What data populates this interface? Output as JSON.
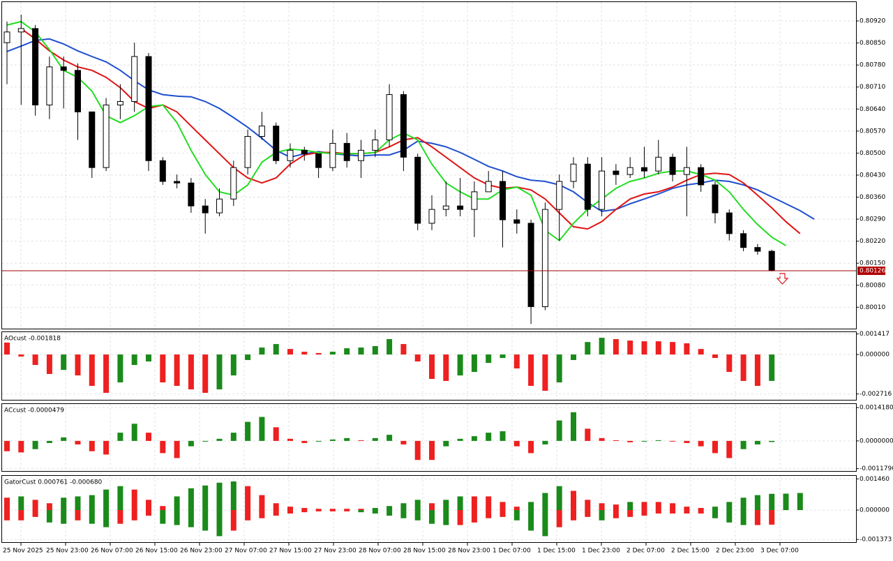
{
  "time_axis": [
    "25 Nov 2025",
    "25 Nov 23:00",
    "26 Nov 07:00",
    "26 Nov 15:00",
    "26 Nov 23:00",
    "27 Nov 07:00",
    "27 Nov 15:00",
    "27 Nov 23:00",
    "28 Nov 07:00",
    "28 Nov 15:00",
    "28 Nov 23:00",
    "1 Dec 07:00",
    "1 Dec 15:00",
    "1 Dec 23:00",
    "2 Dec 07:00",
    "2 Dec 15:00",
    "2 Dec 23:00",
    "3 Dec 07:00"
  ],
  "chart_data": [
    {
      "type": "candlestick",
      "candles": [
        [
          0.80851,
          0.80918,
          0.80719,
          0.80885
        ],
        [
          0.80885,
          0.8094,
          0.80653,
          0.80896
        ],
        [
          0.80896,
          0.80907,
          0.80619,
          0.80653
        ],
        [
          0.80653,
          0.80807,
          0.80608,
          0.80774
        ],
        [
          0.80774,
          0.80807,
          0.80642,
          0.80763
        ],
        [
          0.80763,
          0.80785,
          0.80542,
          0.80631
        ],
        [
          0.80631,
          0.80631,
          0.80421,
          0.80454
        ],
        [
          0.80454,
          0.80675,
          0.80443,
          0.80653
        ],
        [
          0.80653,
          0.80719,
          0.80608,
          0.80664
        ],
        [
          0.80664,
          0.80851,
          0.80631,
          0.80807
        ],
        [
          0.80807,
          0.80818,
          0.80443,
          0.80476
        ],
        [
          0.80476,
          0.80487,
          0.80399,
          0.8041
        ],
        [
          0.8041,
          0.80432,
          0.80388,
          0.80405
        ],
        [
          0.80405,
          0.80421,
          0.8031,
          0.80332
        ],
        [
          0.80332,
          0.80354,
          0.80244,
          0.8031
        ],
        [
          0.8031,
          0.80388,
          0.80299,
          0.80354
        ],
        [
          0.80354,
          0.80476,
          0.80332,
          0.80454
        ],
        [
          0.80454,
          0.80575,
          0.80432,
          0.80553
        ],
        [
          0.80553,
          0.80631,
          0.80542,
          0.80586
        ],
        [
          0.80586,
          0.80597,
          0.80465,
          0.80476
        ],
        [
          0.80476,
          0.80531,
          0.80454,
          0.80509
        ],
        [
          0.80509,
          0.8052,
          0.80476,
          0.80498
        ],
        [
          0.80498,
          0.80498,
          0.80421,
          0.80454
        ],
        [
          0.80454,
          0.80575,
          0.80443,
          0.80531
        ],
        [
          0.80531,
          0.80564,
          0.80454,
          0.80476
        ],
        [
          0.80476,
          0.80542,
          0.80421,
          0.80509
        ],
        [
          0.80509,
          0.80575,
          0.80487,
          0.80542
        ],
        [
          0.80542,
          0.80719,
          0.8052,
          0.80686
        ],
        [
          0.80686,
          0.80697,
          0.80443,
          0.80487
        ],
        [
          0.80487,
          0.80498,
          0.80255,
          0.80277
        ],
        [
          0.80277,
          0.80366,
          0.80255,
          0.80321
        ],
        [
          0.80321,
          0.8041,
          0.80299,
          0.80332
        ],
        [
          0.80332,
          0.80421,
          0.80299,
          0.80321
        ],
        [
          0.80321,
          0.8041,
          0.80233,
          0.80377
        ],
        [
          0.80377,
          0.80443,
          0.80377,
          0.8041
        ],
        [
          0.8041,
          0.80443,
          0.802,
          0.80288
        ],
        [
          0.80288,
          0.80321,
          0.80244,
          0.80277
        ],
        [
          0.80277,
          0.80288,
          0.79957,
          0.80012
        ],
        [
          0.80012,
          0.80343,
          0.80001,
          0.80321
        ],
        [
          0.80321,
          0.80432,
          0.80222,
          0.8041
        ],
        [
          0.8041,
          0.80487,
          0.80388,
          0.80465
        ],
        [
          0.80465,
          0.80487,
          0.80299,
          0.80321
        ],
        [
          0.80321,
          0.80487,
          0.80299,
          0.80443
        ],
        [
          0.80443,
          0.80465,
          0.80399,
          0.80432
        ],
        [
          0.80432,
          0.80487,
          0.80421,
          0.80454
        ],
        [
          0.80454,
          0.8052,
          0.80421,
          0.80443
        ],
        [
          0.80443,
          0.80542,
          0.80432,
          0.80487
        ],
        [
          0.80487,
          0.80498,
          0.8041,
          0.80432
        ],
        [
          0.80432,
          0.8052,
          0.80299,
          0.80454
        ],
        [
          0.80454,
          0.80465,
          0.80377,
          0.80399
        ],
        [
          0.80399,
          0.8041,
          0.80277,
          0.8031
        ],
        [
          0.8031,
          0.80321,
          0.80222,
          0.80244
        ],
        [
          0.80244,
          0.80255,
          0.80188,
          0.802
        ],
        [
          0.802,
          0.80211,
          0.80177,
          0.80188
        ],
        [
          0.80188,
          0.80193,
          0.80124,
          0.80126
        ]
      ],
      "series": [
        {
          "color": "#1f4fcf",
          "values": [
            0.80823,
            0.8084,
            0.80858,
            0.80863,
            0.80847,
            0.80825,
            0.80807,
            0.8079,
            0.80763,
            0.8073,
            0.80701,
            0.80686,
            0.80681,
            0.80679,
            0.80664,
            0.80642,
            0.80613,
            0.80582,
            0.80547,
            0.80509,
            0.80487,
            0.80498,
            0.80505,
            0.80498,
            0.80494,
            0.80491,
            0.80494,
            0.80494,
            0.80509,
            0.80538,
            0.80531,
            0.8052,
            0.80502,
            0.8048,
            0.80458,
            0.80443,
            0.80425,
            0.80414,
            0.8041,
            0.80399,
            0.80377,
            0.80343,
            0.80315,
            0.80321,
            0.80339,
            0.80354,
            0.8037,
            0.80388,
            0.80399,
            0.80405,
            0.80414,
            0.8041,
            0.80399,
            0.80383,
            0.80361,
            0.80339,
            0.80317,
            0.8029
          ]
        },
        {
          "color": "#e01414",
          "values": [
            null,
            0.80896,
            0.80863,
            0.80825,
            0.80796,
            0.80774,
            0.80763,
            0.80741,
            0.80708,
            0.80664,
            0.80642,
            0.80653,
            0.80631,
            0.80586,
            0.80542,
            0.80498,
            0.80454,
            0.80421,
            0.80405,
            0.80421,
            0.80465,
            0.80494,
            0.80502,
            0.80502,
            0.80498,
            0.80498,
            0.80502,
            0.8052,
            0.80542,
            0.80549,
            0.8052,
            0.80487,
            0.80454,
            0.80421,
            0.80399,
            0.80388,
            0.80392,
            0.80383,
            0.80354,
            0.8031,
            0.80266,
            0.80259,
            0.80282,
            0.80321,
            0.80354,
            0.8037,
            0.80377,
            0.80392,
            0.80414,
            0.80432,
            0.80436,
            0.80432,
            0.80405,
            0.80366,
            0.80326,
            0.80282,
            0.80244,
            null
          ]
        },
        {
          "color": "#22dd22",
          "values": [
            0.80907,
            0.80918,
            0.80885,
            0.80829,
            0.80763,
            0.80741,
            0.80697,
            0.80619,
            0.80597,
            0.80619,
            0.80648,
            0.80653,
            0.80597,
            0.80509,
            0.80432,
            0.80377,
            0.80366,
            0.80399,
            0.80471,
            0.80502,
            0.80513,
            0.80509,
            0.80502,
            0.80498,
            0.80498,
            0.80498,
            0.80502,
            0.80542,
            0.80564,
            0.80542,
            0.80465,
            0.80405,
            0.80377,
            0.80354,
            0.80354,
            0.80383,
            0.80392,
            0.80366,
            0.80255,
            0.80222,
            0.80277,
            0.80321,
            0.80354,
            0.80388,
            0.8041,
            0.80421,
            0.80436,
            0.80443,
            0.80443,
            0.80432,
            0.80414,
            0.80377,
            0.80321,
            0.80273,
            0.80233,
            0.80206,
            null,
            null
          ]
        }
      ],
      "current_price": 0.80126,
      "ylim": [
        0.79942,
        0.8098
      ],
      "yticks": [
        {
          "value": 0.8092,
          "label": "0.80920"
        },
        {
          "value": 0.8085,
          "label": "0.80850"
        },
        {
          "value": 0.8078,
          "label": "0.80780"
        },
        {
          "value": 0.8071,
          "label": "0.80710"
        },
        {
          "value": 0.8064,
          "label": "0.80640"
        },
        {
          "value": 0.8057,
          "label": "0.80570"
        },
        {
          "value": 0.805,
          "label": "0.80500"
        },
        {
          "value": 0.8043,
          "label": "0.80430"
        },
        {
          "value": 0.8036,
          "label": "0.80360"
        },
        {
          "value": 0.8029,
          "label": "0.80290"
        },
        {
          "value": 0.8022,
          "label": "0.80220"
        },
        {
          "value": 0.8015,
          "label": "0.80150"
        },
        {
          "value": 0.8008,
          "label": "0.80080"
        },
        {
          "value": 0.8001,
          "label": "0.80010"
        }
      ]
    },
    {
      "type": "bar",
      "label": "AOcust -0.001818",
      "colors": [
        "#1a8a1a",
        "#ee2020"
      ],
      "values": [
        0.00082,
        -0.00014,
        -0.00072,
        -0.00134,
        -0.00106,
        -0.00144,
        -0.00216,
        -0.00264,
        -0.00192,
        -0.00072,
        -0.00048,
        -0.00192,
        -0.00216,
        -0.0024,
        -0.00264,
        -0.0024,
        -0.00144,
        -0.00038,
        0.00048,
        0.00072,
        0.00038,
        0.00019,
        0.0001,
        0.00019,
        0.00043,
        0.00048,
        0.00058,
        0.00106,
        0.00072,
        -0.00048,
        -0.00168,
        -0.00182,
        -0.00144,
        -0.0012,
        -0.00058,
        -0.00024,
        -0.00096,
        -0.00216,
        -0.0025,
        -0.00192,
        -0.00038,
        0.00086,
        0.00115,
        0.00106,
        0.00096,
        0.00091,
        0.00091,
        0.00086,
        0.00077,
        0.00038,
        -0.00024,
        -0.0012,
        -0.00182,
        -0.00216,
        -0.001818
      ],
      "ylim": [
        -0.00312,
        0.00154
      ],
      "yticks": [
        0.001417,
        {
          "value": 0,
          "label": "0.000000"
        },
        -0.002716
      ]
    },
    {
      "type": "bar",
      "label": "ACcust -0.0000479",
      "colors": [
        "#1a8a1a",
        "#ee2020"
      ],
      "values": [
        -0.00044,
        -0.00049,
        -0.00035,
        -9e-05,
        0.00015,
        -0.00015,
        -0.00044,
        -0.00058,
        0.00035,
        0.00073,
        0.00035,
        -0.00052,
        -0.00073,
        -0.00023,
        -3e-05,
        9e-05,
        0.00035,
        0.00081,
        0.00102,
        0.00058,
        9e-05,
        -9e-05,
        -3e-05,
        6e-05,
        0.00012,
        3e-05,
        0.00012,
        0.00026,
        -0.00015,
        -0.00081,
        -0.00081,
        -0.00023,
        9e-05,
        0.0002,
        0.00035,
        0.00041,
        -0.00023,
        -0.00052,
        -0.00015,
        0.00087,
        0.00122,
        0.00052,
        0.00012,
        3e-05,
        -6e-05,
        -3e-05,
        3e-05,
        -1e-05,
        -9e-05,
        -0.00023,
        -0.00052,
        -0.00073,
        -0.00035,
        -0.00015,
        -4.79e-05
      ],
      "ylim": [
        -0.00128,
        0.00157
      ],
      "yticks": [
        {
          "value": 0.001418,
          "label": "0.0014180"
        },
        {
          "value": 0,
          "label": "0.0000000"
        },
        {
          "value": -0.001179,
          "label": "-0.0011790"
        }
      ]
    },
    {
      "type": "gator",
      "label": "GatorCust 0.000761 -0.000680",
      "colors": [
        "#1a8a1a",
        "#ee2020"
      ],
      "upper": [
        0.00058,
        0.00064,
        0.00048,
        0.00032,
        0.00058,
        0.00064,
        0.0007,
        0.00096,
        0.00112,
        0.00096,
        0.00048,
        0.00019,
        0.00064,
        0.00102,
        0.00115,
        0.00128,
        0.00134,
        0.00112,
        0.0007,
        0.00032,
        0.00016,
        0.0001,
        6e-05,
        6e-05,
        6e-05,
        6e-05,
        0.0001,
        0.00019,
        0.00032,
        0.00048,
        0.00032,
        0.00048,
        0.00064,
        0.00064,
        0.00064,
        0.00038,
        0.00016,
        0.00038,
        0.0008,
        0.00112,
        0.0009,
        0.00048,
        0.00032,
        0.00026,
        0.00038,
        0.00038,
        0.00038,
        0.00032,
        0.00016,
        0.0001,
        0.00016,
        0.00038,
        0.00058,
        0.0007,
        0.000761,
        0.00077,
        0.0008
      ],
      "lower": [
        -0.00048,
        -0.00048,
        -0.00032,
        -0.00058,
        -0.00064,
        -0.00048,
        -0.00064,
        -0.0008,
        -0.00064,
        -0.00048,
        -0.00026,
        -0.00064,
        -0.0007,
        -0.0008,
        -0.00096,
        -0.00122,
        -0.00096,
        -0.00048,
        -0.00038,
        -0.00026,
        -0.00016,
        -0.0001,
        -6e-05,
        -6e-05,
        -6e-05,
        -0.0001,
        -0.00016,
        -0.00026,
        -0.00038,
        -0.00048,
        -0.00064,
        -0.0007,
        -0.0007,
        -0.00058,
        -0.00038,
        -0.00032,
        -0.00048,
        -0.00096,
        -0.00122,
        -0.0008,
        -0.00048,
        -0.00032,
        -0.00048,
        -0.00038,
        -0.00032,
        -0.00026,
        -0.00016,
        -0.00016,
        -0.00016,
        -0.00016,
        -0.00038,
        -0.00058,
        -0.0007,
        -0.0007,
        -0.00068,
        null,
        null
      ],
      "ylim": [
        -0.0015,
        0.0016
      ],
      "yticks": [
        {
          "value": 0.00146,
          "label": "0.001460"
        },
        {
          "value": 0,
          "label": "0.000000"
        },
        -0.001373
      ]
    }
  ]
}
